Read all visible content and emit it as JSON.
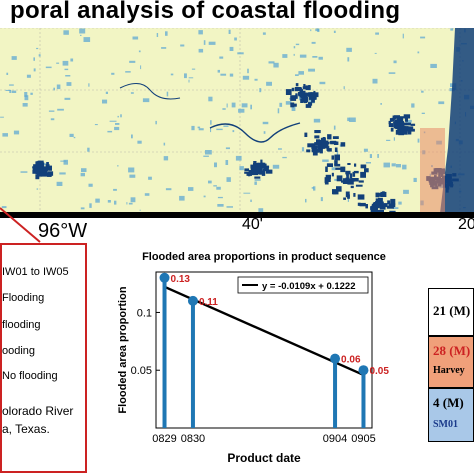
{
  "figure": {
    "title": "poral analysis of coastal flooding",
    "map_labels": {
      "lon_left": "96°W",
      "lon_mid": "40'",
      "lon_right": "20"
    },
    "colors": {
      "land": "#f2f5c4",
      "water_light": "#5fa8d3",
      "water_dark": "#12407a",
      "accent_red": "#cc2222"
    }
  },
  "left_legend": {
    "items": [
      "IW01 to IW05",
      "Flooding",
      "flooding",
      "ooding",
      "No flooding",
      "olorado River",
      "a, Texas."
    ]
  },
  "right_legend": {
    "box1": {
      "label": "21 (M)"
    },
    "box2": {
      "label": "28 (M)",
      "sub": "Harvey",
      "color": "#f0a07a"
    },
    "box3": {
      "label": "4 (M)",
      "sub": "SM01",
      "color": "#a9c8e8"
    }
  },
  "chart_data": {
    "type": "scatter",
    "style": "stem",
    "title": "Flooded area proportions in product sequence",
    "xlabel": "Product date",
    "ylabel": "Flooded area proportion",
    "x_tick_labels": [
      "0829",
      "0830",
      "0904",
      "0905"
    ],
    "x_index": [
      0,
      1,
      6,
      7
    ],
    "xlim": [
      -0.3,
      7.3
    ],
    "ylim": [
      0,
      0.135
    ],
    "y_ticks": [
      0.05,
      0.1
    ],
    "y_tick_labels": [
      "0.05",
      "0.1"
    ],
    "values": [
      0.13,
      0.11,
      0.06,
      0.05
    ],
    "data_labels": [
      "0.13",
      "0.11",
      "0.06",
      "0.05"
    ],
    "stem_color": "#1f77b4",
    "label_color": "#cc2222",
    "fit": {
      "slope": -0.0109,
      "intercept": 0.1222,
      "label": "y = -0.0109x + 0.1222",
      "color": "#000000"
    },
    "legend_position": "top-right",
    "grid": false
  }
}
